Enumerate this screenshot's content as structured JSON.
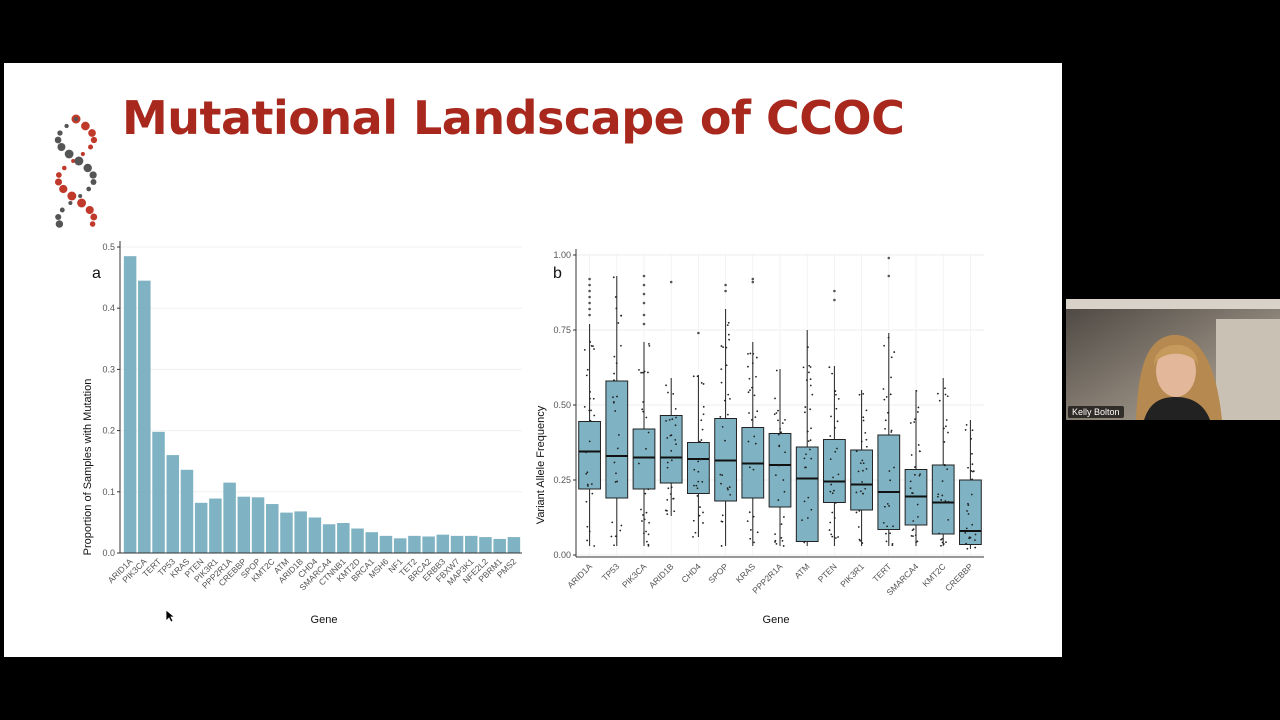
{
  "slide": {
    "title": "Mutational Landscape of CCOC"
  },
  "webcam": {
    "participant_name": "Kelly Bolton"
  },
  "colors": {
    "bar_fill": "#7fb3c4",
    "title_red": "#a8281e",
    "logo_red": "#c0392b",
    "logo_gray": "#555555"
  },
  "chart_data": [
    {
      "type": "bar",
      "panel_label": "a",
      "xlabel": "Gene",
      "ylabel": "Proportion of Samples with Mutation",
      "ylim": [
        0,
        0.5
      ],
      "yticks": [
        0.0,
        0.1,
        0.2,
        0.3,
        0.4,
        0.5
      ],
      "ytick_labels": [
        "0.0",
        "0.1",
        "0.2",
        "0.3",
        "0.4",
        "0.5"
      ],
      "grid": true,
      "categories": [
        "ARID1A",
        "PIK3CA",
        "TERT",
        "TP53",
        "KRAS",
        "PTEN",
        "PIK3R1",
        "PPP2R1A",
        "CREBBP",
        "SPOP",
        "KMT2C",
        "ATM",
        "ARID1B",
        "CHD4",
        "SMARCA4",
        "CTNNB1",
        "KMT2D",
        "BRCA1",
        "MSH6",
        "NF1",
        "TET2",
        "BRCA2",
        "ERBB3",
        "FBXW7",
        "MAP3K1",
        "NFE2L2",
        "PBRM1",
        "PMS2"
      ],
      "values": [
        0.485,
        0.445,
        0.198,
        0.16,
        0.136,
        0.082,
        0.089,
        0.115,
        0.092,
        0.091,
        0.08,
        0.066,
        0.068,
        0.058,
        0.047,
        0.049,
        0.04,
        0.034,
        0.028,
        0.024,
        0.028,
        0.027,
        0.03,
        0.028,
        0.028,
        0.026,
        0.023,
        0.026
      ]
    },
    {
      "type": "box",
      "panel_label": "b",
      "xlabel": "Gene",
      "ylabel": "Variant Allele Frequency",
      "ylim": [
        0,
        1
      ],
      "yticks": [
        0,
        0.25,
        0.5,
        0.75,
        1
      ],
      "ytick_labels": [
        "0.00",
        "0.25",
        "0.50",
        "0.75",
        "1.00"
      ],
      "grid": true,
      "categories": [
        "ARID1A",
        "TP53",
        "PIK3CA",
        "ARID1B",
        "CHD4",
        "SPOP",
        "KRAS",
        "PPP2R1A",
        "ATM",
        "PTEN",
        "PIK3R1",
        "TERT",
        "SMARCA4",
        "KMT2C",
        "CREBBP"
      ],
      "boxes": [
        {
          "q1": 0.22,
          "median": 0.345,
          "q3": 0.445,
          "whisker_low": 0.03,
          "whisker_high": 0.77,
          "outliers": [
            0.8,
            0.82,
            0.84,
            0.86,
            0.88,
            0.9,
            0.92
          ]
        },
        {
          "q1": 0.19,
          "median": 0.33,
          "q3": 0.58,
          "whisker_low": 0.03,
          "whisker_high": 0.93,
          "outliers": []
        },
        {
          "q1": 0.22,
          "median": 0.325,
          "q3": 0.42,
          "whisker_low": 0.03,
          "whisker_high": 0.71,
          "outliers": [
            0.77,
            0.8,
            0.84,
            0.87,
            0.9,
            0.93
          ]
        },
        {
          "q1": 0.24,
          "median": 0.325,
          "q3": 0.465,
          "whisker_low": 0.13,
          "whisker_high": 0.59,
          "outliers": [
            0.91
          ]
        },
        {
          "q1": 0.205,
          "median": 0.32,
          "q3": 0.375,
          "whisker_low": 0.06,
          "whisker_high": 0.6,
          "outliers": [
            0.74
          ]
        },
        {
          "q1": 0.18,
          "median": 0.315,
          "q3": 0.455,
          "whisker_low": 0.03,
          "whisker_high": 0.82,
          "outliers": [
            0.88,
            0.9
          ]
        },
        {
          "q1": 0.19,
          "median": 0.305,
          "q3": 0.425,
          "whisker_low": 0.03,
          "whisker_high": 0.71,
          "outliers": [
            0.91,
            0.92
          ]
        },
        {
          "q1": 0.16,
          "median": 0.3,
          "q3": 0.405,
          "whisker_low": 0.03,
          "whisker_high": 0.62,
          "outliers": []
        },
        {
          "q1": 0.045,
          "median": 0.255,
          "q3": 0.36,
          "whisker_low": 0.03,
          "whisker_high": 0.75,
          "outliers": []
        },
        {
          "q1": 0.175,
          "median": 0.245,
          "q3": 0.385,
          "whisker_low": 0.03,
          "whisker_high": 0.63,
          "outliers": [
            0.85,
            0.88
          ]
        },
        {
          "q1": 0.15,
          "median": 0.235,
          "q3": 0.35,
          "whisker_low": 0.03,
          "whisker_high": 0.55,
          "outliers": []
        },
        {
          "q1": 0.085,
          "median": 0.21,
          "q3": 0.4,
          "whisker_low": 0.03,
          "whisker_high": 0.74,
          "outliers": [
            0.93,
            0.99
          ]
        },
        {
          "q1": 0.1,
          "median": 0.195,
          "q3": 0.285,
          "whisker_low": 0.03,
          "whisker_high": 0.55,
          "outliers": []
        },
        {
          "q1": 0.07,
          "median": 0.175,
          "q3": 0.3,
          "whisker_low": 0.03,
          "whisker_high": 0.59,
          "outliers": []
        },
        {
          "q1": 0.035,
          "median": 0.08,
          "q3": 0.25,
          "whisker_low": 0.02,
          "whisker_high": 0.45,
          "outliers": []
        }
      ]
    }
  ]
}
